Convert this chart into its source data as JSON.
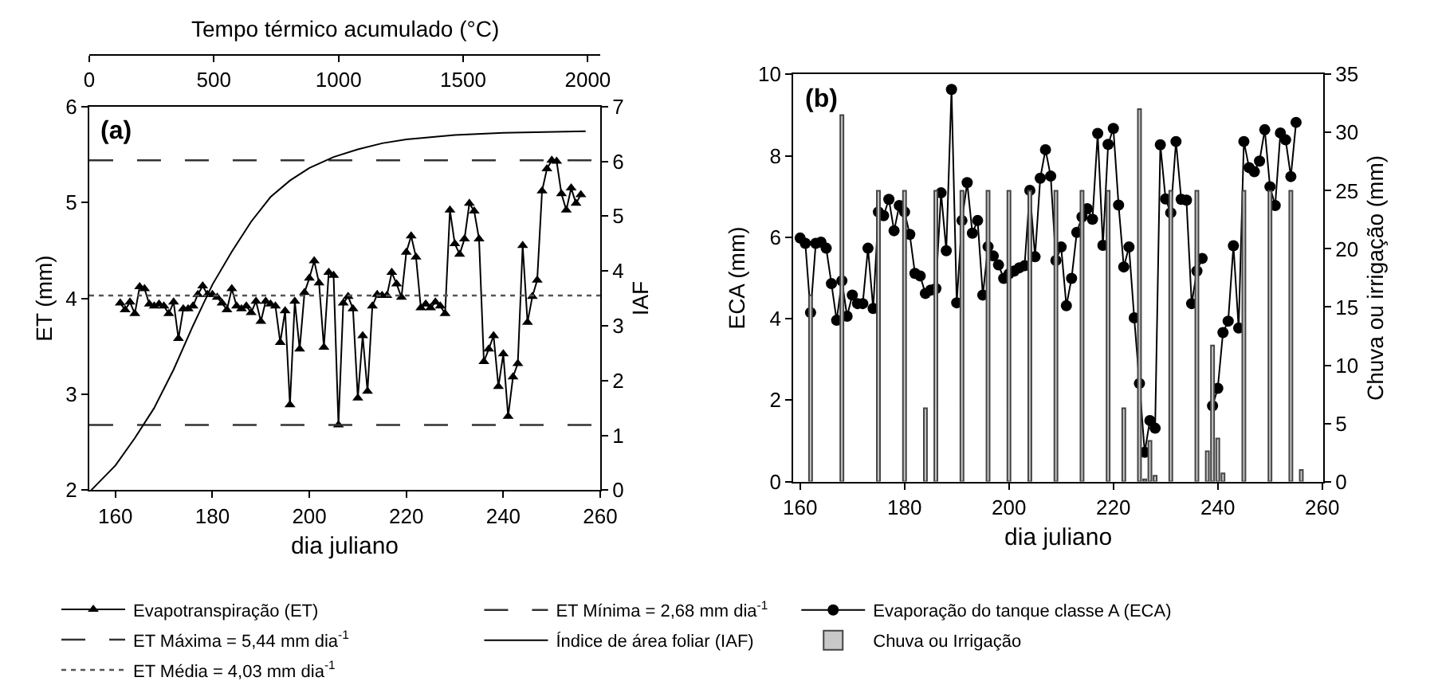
{
  "chart_data": [
    {
      "type": "line",
      "title": "(a)",
      "xlabel": "dia juliano",
      "ylabel": "ET (mm)",
      "y2label": "IAF",
      "x2label": "Tempo térmico acumulado (°C)",
      "xlim": [
        154.6,
        260
      ],
      "xticks": [
        160,
        180,
        200,
        220,
        240,
        260
      ],
      "ylim": [
        2,
        6
      ],
      "yticks": [
        2,
        3,
        4,
        5,
        6
      ],
      "y2lim": [
        0,
        7
      ],
      "y2ticks": [
        0,
        1,
        2,
        3,
        4,
        5,
        6,
        7
      ],
      "x2lim": [
        0,
        2050
      ],
      "x2ticks": [
        0,
        500,
        1000,
        1500,
        2000
      ],
      "x": [
        161,
        162,
        163,
        164,
        165,
        166,
        167,
        168,
        169,
        170,
        171,
        172,
        173,
        174,
        175,
        176,
        177,
        178,
        179,
        180,
        181,
        182,
        183,
        184,
        185,
        186,
        187,
        188,
        189,
        190,
        191,
        192,
        193,
        194,
        195,
        196,
        197,
        198,
        199,
        200,
        201,
        202,
        203,
        204,
        205,
        206,
        207,
        208,
        209,
        210,
        211,
        212,
        213,
        214,
        215,
        216,
        217,
        218,
        219,
        220,
        221,
        222,
        223,
        224,
        225,
        226,
        227,
        228,
        229,
        230,
        231,
        232,
        233,
        234,
        235,
        236,
        237,
        238,
        239,
        240,
        241,
        242,
        243,
        244,
        245,
        246,
        247,
        248,
        249,
        250,
        251,
        252,
        253,
        254,
        255,
        256
      ],
      "series": [
        {
          "name": "Evapotranspiração (ET)",
          "color": "#000000",
          "marker": "triangle",
          "values": [
            3.95,
            3.88,
            3.96,
            3.84,
            4.12,
            4.1,
            3.94,
            3.92,
            3.94,
            3.92,
            3.84,
            3.96,
            3.58,
            3.89,
            3.89,
            3.92,
            4.04,
            4.13,
            4.04,
            4.04,
            4.01,
            3.95,
            3.88,
            4.1,
            3.92,
            3.89,
            3.92,
            3.85,
            3.97,
            3.76,
            3.97,
            3.94,
            3.92,
            3.54,
            3.87,
            2.89,
            3.97,
            3.47,
            4.06,
            4.21,
            4.39,
            4.16,
            3.49,
            4.27,
            4.24,
            2.68,
            3.95,
            4.02,
            3.89,
            2.96,
            3.61,
            3.03,
            3.92,
            4.04,
            4.03,
            4.03,
            4.27,
            4.15,
            4.01,
            4.48,
            4.65,
            4.43,
            3.9,
            3.94,
            3.9,
            3.96,
            3.92,
            3.84,
            4.92,
            4.57,
            4.46,
            4.62,
            4.99,
            4.91,
            4.62,
            3.34,
            3.47,
            3.61,
            3.08,
            3.42,
            2.77,
            3.18,
            3.32,
            4.55,
            3.75,
            4.02,
            4.19,
            5.12,
            5.35,
            5.44,
            5.43,
            5.09,
            4.92,
            5.15,
            4.99,
            5.08
          ]
        },
        {
          "name": "Índice de área foliar (IAF)",
          "color": "#000000",
          "marker": "none",
          "axis": "y2",
          "x": [
            155,
            160,
            164,
            168,
            172,
            176,
            180,
            184,
            188,
            192,
            196,
            200,
            205,
            210,
            215,
            220,
            230,
            240,
            257
          ],
          "values": [
            0,
            0.45,
            0.95,
            1.5,
            2.2,
            3.0,
            3.75,
            4.35,
            4.9,
            5.35,
            5.65,
            5.88,
            6.08,
            6.22,
            6.33,
            6.4,
            6.48,
            6.52,
            6.55
          ]
        }
      ],
      "ref_lines": [
        {
          "axis": "y",
          "value": 5.44,
          "label": "ET Máxima = 5,44 mm dia$^{-1}$",
          "color": "#333333",
          "line_style": "dashed"
        },
        {
          "axis": "y",
          "value": 4.03,
          "label": "ET Média = 4,03 mm dia$^{-1}$",
          "color": "#555555",
          "line_style": "dotted"
        },
        {
          "axis": "y",
          "value": 2.68,
          "label": "ET Mínima = 2,68 mm dia$^{-1}$",
          "color": "#333333",
          "line_style": "dashed"
        }
      ],
      "legend": "bottom"
    },
    {
      "type": "line",
      "title": "(b)",
      "xlabel": "dia juliano",
      "ylabel": "ECA (mm)",
      "y2label": "Chuva ou irrigação (mm)",
      "xlim": [
        158.7,
        260.2
      ],
      "xticks": [
        160,
        180,
        200,
        220,
        240,
        260
      ],
      "ylim": [
        0,
        10
      ],
      "yticks": [
        0,
        2,
        4,
        6,
        8,
        10
      ],
      "y2lim": [
        0,
        35
      ],
      "y2ticks": [
        0,
        5,
        10,
        15,
        20,
        25,
        30,
        35
      ],
      "x": [
        160,
        161,
        162,
        163,
        164,
        165,
        166,
        167,
        168,
        169,
        170,
        171,
        172,
        173,
        174,
        175,
        176,
        177,
        178,
        179,
        180,
        181,
        182,
        183,
        184,
        185,
        186,
        187,
        188,
        189,
        190,
        191,
        192,
        193,
        194,
        195,
        196,
        197,
        198,
        199,
        200,
        201,
        202,
        203,
        204,
        205,
        206,
        207,
        208,
        209,
        210,
        211,
        212,
        213,
        214,
        215,
        216,
        217,
        218,
        219,
        220,
        221,
        222,
        223,
        224,
        225,
        226,
        227,
        228,
        229,
        230,
        231,
        232,
        233,
        234,
        235,
        236,
        237,
        238,
        239,
        240,
        241,
        242,
        243,
        244,
        245,
        246,
        247,
        248,
        249,
        250,
        251,
        252,
        253,
        254,
        255
      ],
      "series": [
        {
          "name": "Evaporação do tanque classe A (ECA)",
          "color": "#000000",
          "marker": "circle",
          "values": [
            5.98,
            5.85,
            4.15,
            5.85,
            5.88,
            5.73,
            4.86,
            3.96,
            4.93,
            4.06,
            4.58,
            4.37,
            4.37,
            5.73,
            4.25,
            6.62,
            6.53,
            6.93,
            6.16,
            6.78,
            6.62,
            6.07,
            5.11,
            5.05,
            4.62,
            4.7,
            4.74,
            7.09,
            5.67,
            9.63,
            4.39,
            6.41,
            7.34,
            6.1,
            6.41,
            4.58,
            5.77,
            5.54,
            5.32,
            4.99,
            5.1,
            5.17,
            5.25,
            5.3,
            7.15,
            5.52,
            7.45,
            8.15,
            7.5,
            5.43,
            5.76,
            4.32,
            4.99,
            6.12,
            6.5,
            6.7,
            6.44,
            8.55,
            5.8,
            8.28,
            8.67,
            6.79,
            5.27,
            5.76,
            4.02,
            2.41,
            0.72,
            1.5,
            1.31,
            8.27,
            6.94,
            6.6,
            8.35,
            6.93,
            6.91,
            4.37,
            5.17,
            5.48,
            null,
            1.86,
            2.29,
            3.66,
            3.94,
            5.79,
            3.77,
            8.35,
            7.71,
            7.61,
            7.87,
            8.64,
            7.24,
            6.78,
            8.56,
            8.39,
            7.49,
            8.82
          ]
        },
        {
          "name": "Chuva ou Irrigação",
          "type": "bar",
          "color": "#c8c8c8",
          "axis": "y2",
          "x": [
            162,
            168,
            175,
            180,
            184,
            186,
            191,
            196,
            200,
            204,
            209,
            214,
            219,
            222,
            225,
            226,
            227,
            228,
            231,
            236,
            238,
            239,
            240,
            241,
            245,
            250,
            254,
            256
          ],
          "values": [
            16,
            31.5,
            25,
            25,
            6.3,
            25,
            25,
            25,
            25,
            25,
            25,
            25,
            25,
            6.3,
            32,
            0.2,
            3.5,
            0.5,
            25,
            25,
            2.6,
            11.7,
            3.7,
            0.7,
            25,
            25,
            25,
            1
          ]
        }
      ],
      "legend": "bottom"
    }
  ]
}
